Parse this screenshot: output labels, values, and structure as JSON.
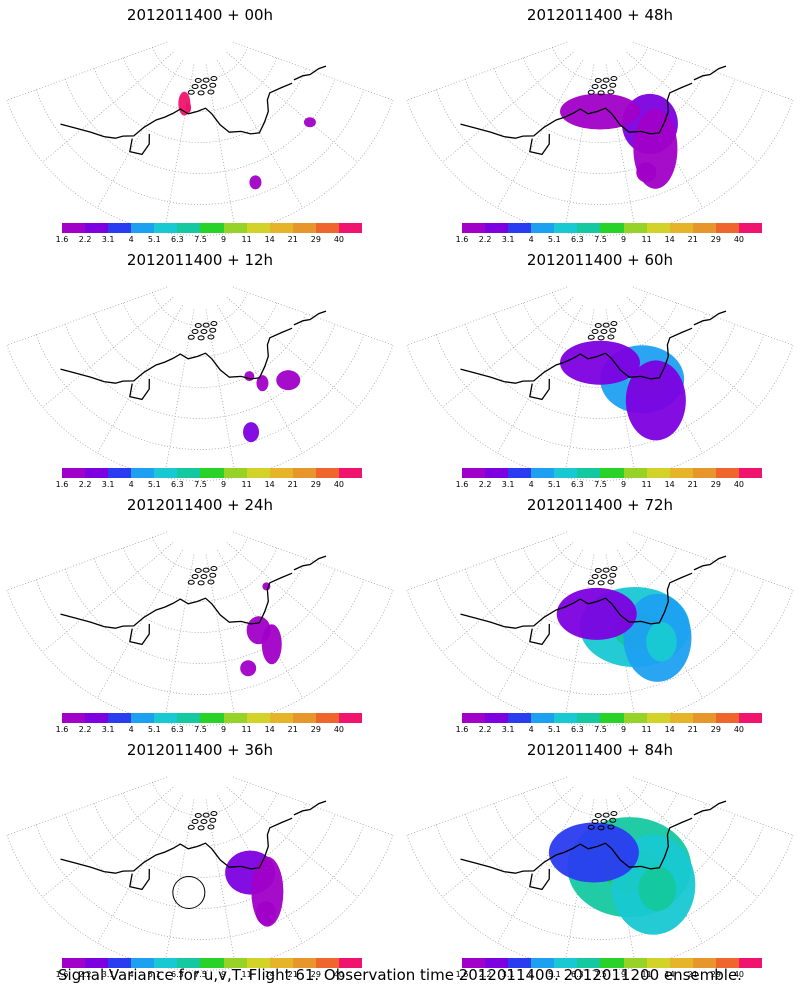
{
  "panels": [
    {
      "title": "2012011400 + 00h",
      "lead": 0
    },
    {
      "title": "2012011400 + 48h",
      "lead": 48
    },
    {
      "title": "2012011400 + 12h",
      "lead": 12
    },
    {
      "title": "2012011400 + 60h",
      "lead": 60
    },
    {
      "title": "2012011400 + 24h",
      "lead": 24
    },
    {
      "title": "2012011400 + 72h",
      "lead": 72
    },
    {
      "title": "2012011400 + 36h",
      "lead": 36
    },
    {
      "title": "2012011400 + 84h",
      "lead": 84
    }
  ],
  "colorbar": {
    "labels": [
      "1.6",
      "2.2",
      "3.1",
      "4",
      "5.1",
      "6.3",
      "7.5",
      "9",
      "11",
      "14",
      "21",
      "29",
      "40"
    ],
    "colors": [
      "#a000c8",
      "#7d00e0",
      "#2a3cf0",
      "#1ea0f0",
      "#18c8d2",
      "#14c8a0",
      "#28d228",
      "#96d228",
      "#d2d228",
      "#e6b428",
      "#e6962a",
      "#f0642d",
      "#f0146e"
    ]
  },
  "caption": "Signal Variance for u,v,T. Flight 61. Observation time 2012011400. 2012011200 ensemble."
}
